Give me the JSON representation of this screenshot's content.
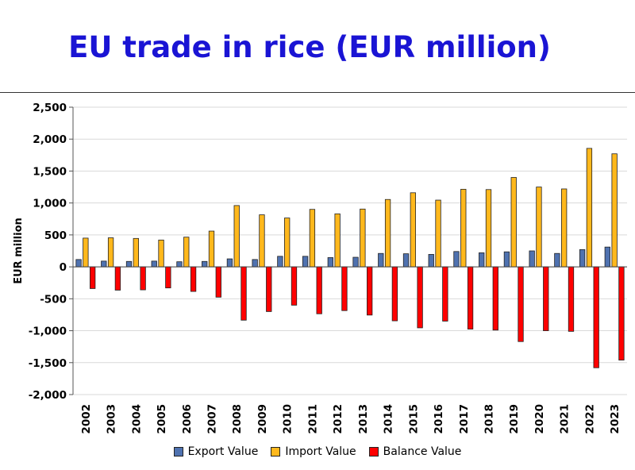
{
  "title": "EU trade in rice (EUR million)",
  "chart_data": {
    "type": "bar",
    "title": "EU trade in rice (EUR million)",
    "xlabel": "",
    "ylabel": "EUR million",
    "ylim": [
      -2000,
      2500
    ],
    "yticks": [
      2500,
      2000,
      1500,
      1000,
      500,
      0,
      -500,
      -1000,
      -1500,
      -2000
    ],
    "ytick_labels": [
      "2,500",
      "2,000",
      "1,500",
      "1,000",
      "500",
      "0",
      "-500",
      "-1,000",
      "-1,500",
      "-2,000"
    ],
    "grid": true,
    "legend_position": "bottom",
    "categories": [
      "2002",
      "2003",
      "2004",
      "2005",
      "2006",
      "2007",
      "2008",
      "2009",
      "2010",
      "2011",
      "2012",
      "2013",
      "2014",
      "2015",
      "2016",
      "2017",
      "2018",
      "2019",
      "2020",
      "2021",
      "2022",
      "2023"
    ],
    "series": [
      {
        "name": "Export Value",
        "color": "#4f72b0",
        "values": [
          115,
          90,
          85,
          90,
          80,
          85,
          125,
          115,
          165,
          165,
          145,
          150,
          210,
          205,
          195,
          240,
          220,
          235,
          250,
          210,
          270,
          310
        ]
      },
      {
        "name": "Import Value",
        "color": "#ffb81c",
        "values": [
          450,
          455,
          445,
          420,
          465,
          560,
          960,
          815,
          765,
          900,
          830,
          905,
          1055,
          1160,
          1045,
          1215,
          1210,
          1400,
          1250,
          1220,
          1855,
          1770
        ]
      },
      {
        "name": "Balance Value",
        "color": "#ff0000",
        "values": [
          -340,
          -365,
          -360,
          -330,
          -385,
          -475,
          -835,
          -700,
          -600,
          -735,
          -685,
          -755,
          -845,
          -955,
          -850,
          -975,
          -990,
          -1170,
          -1000,
          -1010,
          -1580,
          -1460
        ]
      }
    ]
  }
}
